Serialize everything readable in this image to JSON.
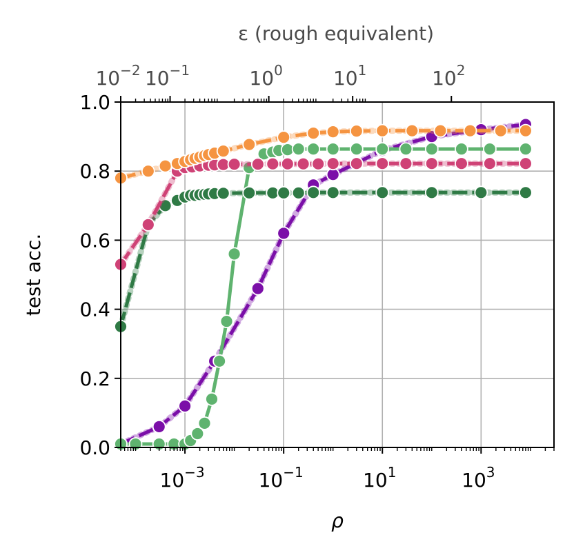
{
  "chart_data": {
    "type": "line",
    "xlabel": "ρ",
    "ylabel": "test acc.",
    "top_xlabel": "ε (rough equivalent)",
    "xscale": "log",
    "xlim": [
      5e-05,
      30000
    ],
    "ylim": [
      0,
      1
    ],
    "grid": true,
    "x_ticks": [
      {
        "value": 0.001,
        "base": "10",
        "exp": "−3"
      },
      {
        "value": 0.1,
        "base": "10",
        "exp": "−1"
      },
      {
        "value": 10,
        "base": "10",
        "exp": "1"
      },
      {
        "value": 1000,
        "base": "10",
        "exp": "3"
      }
    ],
    "y_ticks": [
      {
        "value": 0.0,
        "label": "0.0"
      },
      {
        "value": 0.2,
        "label": "0.2"
      },
      {
        "value": 0.4,
        "label": "0.4"
      },
      {
        "value": 0.6,
        "label": "0.6"
      },
      {
        "value": 0.8,
        "label": "0.8"
      },
      {
        "value": 1.0,
        "label": "1.0"
      }
    ],
    "top_ticks": [
      {
        "rho": 5e-05,
        "base": "10",
        "exp": "−2"
      },
      {
        "rho": 0.0005,
        "base": "10",
        "exp": "−1"
      },
      {
        "rho": 0.05,
        "base": "10",
        "exp": "0"
      },
      {
        "rho": 2.5,
        "base": "10",
        "exp": "1"
      },
      {
        "rho": 250,
        "base": "10",
        "exp": "2"
      }
    ],
    "series": [
      {
        "color": "#7b0fa8",
        "dash": true,
        "x": [
          5e-05,
          0.0003,
          0.001,
          0.004,
          0.03,
          0.1,
          0.4,
          1,
          10,
          100,
          1000,
          8000
        ],
        "y": [
          0.01,
          0.06,
          0.12,
          0.25,
          0.46,
          0.62,
          0.76,
          0.79,
          0.86,
          0.9,
          0.92,
          0.935
        ]
      },
      {
        "color": "#5fb36f",
        "dash": false,
        "x": [
          5e-05,
          0.0001,
          0.0003,
          0.0006,
          0.001,
          0.0013,
          0.0018,
          0.0025,
          0.0035,
          0.005,
          0.007,
          0.01,
          0.02,
          0.04,
          0.06,
          0.08,
          0.12,
          0.2,
          0.4,
          1,
          3,
          10,
          30,
          100,
          400,
          1500,
          8000
        ],
        "y": [
          0.01,
          0.01,
          0.01,
          0.01,
          0.01,
          0.02,
          0.04,
          0.07,
          0.14,
          0.25,
          0.365,
          0.56,
          0.81,
          0.85,
          0.855,
          0.86,
          0.862,
          0.864,
          0.864,
          0.864,
          0.864,
          0.864,
          0.864,
          0.864,
          0.864,
          0.864,
          0.864
        ]
      },
      {
        "color": "#2f7a45",
        "dash": true,
        "x": [
          5e-05,
          0.00018,
          0.0004,
          0.0007,
          0.001,
          0.0013,
          0.0016,
          0.002,
          0.0025,
          0.003,
          0.004,
          0.006,
          0.02,
          0.06,
          0.1,
          0.2,
          0.4,
          1,
          10,
          100,
          1000,
          8000
        ],
        "y": [
          0.35,
          0.645,
          0.7,
          0.715,
          0.725,
          0.73,
          0.73,
          0.732,
          0.733,
          0.734,
          0.735,
          0.736,
          0.737,
          0.737,
          0.737,
          0.737,
          0.738,
          0.738,
          0.738,
          0.738,
          0.738,
          0.738
        ]
      },
      {
        "color": "#cf4276",
        "dash": true,
        "x": [
          5e-05,
          0.00018,
          0.0007,
          0.001,
          0.0014,
          0.002,
          0.003,
          0.004,
          0.006,
          0.01,
          0.03,
          0.06,
          0.12,
          0.25,
          0.5,
          1,
          3,
          10,
          30,
          100,
          400,
          1500,
          8000
        ],
        "y": [
          0.53,
          0.645,
          0.8,
          0.81,
          0.812,
          0.815,
          0.817,
          0.818,
          0.819,
          0.82,
          0.82,
          0.821,
          0.821,
          0.821,
          0.821,
          0.822,
          0.822,
          0.822,
          0.822,
          0.822,
          0.822,
          0.822,
          0.822
        ]
      },
      {
        "color": "#f59441",
        "dash": true,
        "x": [
          5e-05,
          0.00018,
          0.0004,
          0.0007,
          0.001,
          0.0013,
          0.0016,
          0.002,
          0.0025,
          0.003,
          0.004,
          0.006,
          0.02,
          0.1,
          0.4,
          1,
          3,
          10,
          40,
          150,
          600,
          2500,
          8000
        ],
        "y": [
          0.78,
          0.8,
          0.815,
          0.822,
          0.828,
          0.833,
          0.837,
          0.841,
          0.845,
          0.848,
          0.852,
          0.858,
          0.877,
          0.898,
          0.91,
          0.914,
          0.916,
          0.917,
          0.917,
          0.917,
          0.917,
          0.917,
          0.917
        ]
      }
    ]
  }
}
